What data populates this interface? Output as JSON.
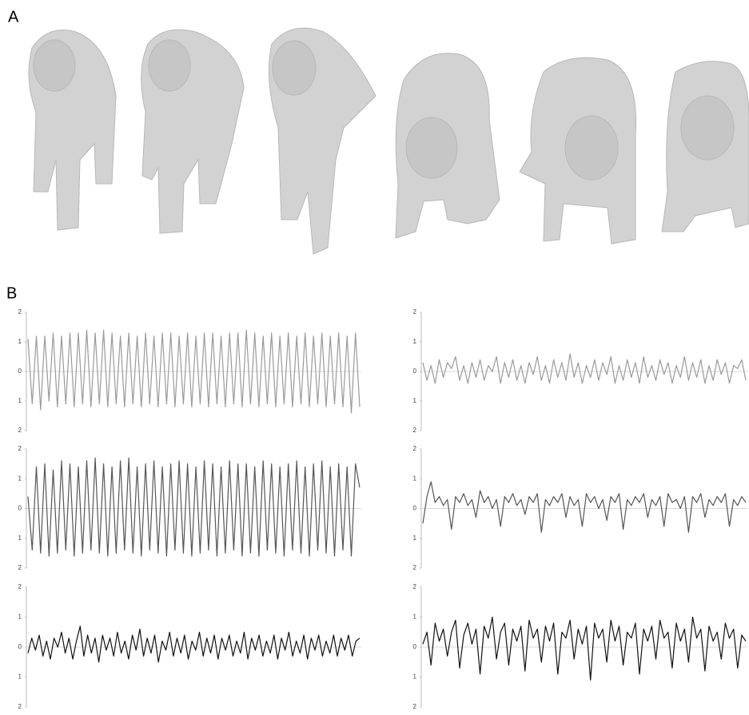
{
  "panels": {
    "a_label": "A",
    "b_label": "B"
  },
  "chart_data": [
    {
      "type": "line",
      "color": "#9a9a9a",
      "ylim": [
        -2,
        2
      ],
      "yticks": [
        {
          "value": -2,
          "label": "2"
        },
        {
          "value": -1,
          "label": "1"
        },
        0,
        1,
        2
      ],
      "zero_line": true,
      "values": [
        1.1,
        -1.1,
        1.2,
        -1.3,
        1.2,
        -1.0,
        1.3,
        -1.2,
        1.2,
        -1.1,
        1.3,
        -1.2,
        1.3,
        -1.1,
        1.4,
        -1.2,
        1.3,
        -1.1,
        1.4,
        -1.2,
        1.3,
        -1.1,
        1.2,
        -1.2,
        1.3,
        -1.1,
        1.2,
        -1.2,
        1.3,
        -1.1,
        1.2,
        -1.2,
        1.3,
        -1.1,
        1.3,
        -1.2,
        1.2,
        -1.1,
        1.3,
        -1.2,
        1.2,
        -1.1,
        1.3,
        -1.2,
        1.3,
        -1.1,
        1.2,
        -1.2,
        1.3,
        -1.1,
        1.3,
        -1.2,
        1.4,
        -1.1,
        1.3,
        -1.2,
        1.2,
        -1.1,
        1.3,
        -1.2,
        1.2,
        -1.1,
        1.3,
        -1.2,
        1.2,
        -1.1,
        1.3,
        -1.2,
        1.2,
        -1.1,
        1.3,
        -1.2,
        1.2,
        -1.1,
        1.3,
        -1.2,
        1.2,
        -1.4,
        1.3,
        -1.2
      ]
    },
    {
      "type": "line",
      "color": "#9a9a9a",
      "ylim": [
        -2,
        2
      ],
      "yticks": [
        {
          "value": -2,
          "label": "2"
        },
        {
          "value": -1,
          "label": "1"
        },
        0,
        1,
        2
      ],
      "zero_line": true,
      "values": [
        0.3,
        -0.3,
        0.2,
        -0.4,
        0.4,
        -0.2,
        0.3,
        0.1,
        0.5,
        -0.3,
        0.2,
        -0.4,
        0.3,
        -0.2,
        0.4,
        -0.3,
        0.2,
        0.0,
        0.5,
        -0.4,
        0.3,
        -0.2,
        0.4,
        -0.3,
        0.2,
        -0.4,
        0.3,
        -0.1,
        0.5,
        -0.3,
        0.2,
        -0.4,
        0.4,
        -0.2,
        0.3,
        -0.3,
        0.6,
        -0.2,
        0.3,
        -0.4,
        0.2,
        -0.2,
        0.4,
        -0.3,
        0.3,
        -0.1,
        0.5,
        -0.4,
        0.2,
        -0.3,
        0.4,
        -0.2,
        0.3,
        -0.4,
        0.5,
        -0.2,
        0.2,
        -0.3,
        0.4,
        -0.1,
        0.3,
        -0.4,
        0.2,
        -0.2,
        0.5,
        -0.3,
        0.3,
        -0.2,
        0.4,
        -0.4,
        0.2,
        -0.3,
        0.4,
        -0.1,
        0.3,
        -0.4,
        0.2,
        0.1,
        0.4,
        -0.3
      ]
    },
    {
      "type": "line",
      "color": "#555555",
      "ylim": [
        -2,
        2
      ],
      "yticks": [
        {
          "value": -2,
          "label": "2"
        },
        {
          "value": -1,
          "label": "1"
        },
        0,
        1,
        2
      ],
      "zero_line": true,
      "values": [
        0.4,
        -1.4,
        1.4,
        -1.5,
        1.5,
        -1.6,
        1.3,
        -1.5,
        1.6,
        -1.4,
        1.5,
        -1.6,
        1.4,
        -1.5,
        1.6,
        -1.4,
        1.7,
        -1.5,
        1.5,
        -1.6,
        1.4,
        -1.5,
        1.6,
        -1.4,
        1.7,
        -1.5,
        1.4,
        -1.6,
        1.5,
        -1.4,
        1.6,
        -1.5,
        1.4,
        -1.6,
        1.5,
        -1.4,
        1.6,
        -1.5,
        1.5,
        -1.6,
        1.4,
        -1.5,
        1.6,
        -1.4,
        1.5,
        -1.6,
        1.4,
        -1.5,
        1.6,
        -1.4,
        1.5,
        -1.6,
        1.5,
        -1.5,
        1.4,
        -1.6,
        1.6,
        -1.4,
        1.5,
        -1.5,
        1.4,
        -1.6,
        1.5,
        -1.4,
        1.6,
        -1.5,
        1.4,
        -1.6,
        1.5,
        -1.4,
        1.6,
        -1.5,
        1.4,
        -1.6,
        1.5,
        -1.4,
        1.4,
        -1.6,
        1.5,
        0.7
      ]
    },
    {
      "type": "line",
      "color": "#555555",
      "ylim": [
        -2,
        2
      ],
      "yticks": [
        {
          "value": -2,
          "label": "2"
        },
        {
          "value": -1,
          "label": "1"
        },
        0,
        1,
        2
      ],
      "zero_line": true,
      "values": [
        -0.5,
        0.4,
        0.9,
        0.2,
        0.4,
        0.1,
        0.3,
        -0.7,
        0.4,
        0.2,
        0.5,
        0.1,
        0.3,
        -0.3,
        0.6,
        0.2,
        0.4,
        0.0,
        0.3,
        -0.6,
        0.4,
        0.2,
        0.5,
        0.1,
        0.3,
        -0.2,
        0.4,
        0.2,
        0.5,
        -0.8,
        0.3,
        0.1,
        0.4,
        0.2,
        0.5,
        -0.3,
        0.4,
        0.1,
        0.3,
        -0.6,
        0.5,
        0.2,
        0.4,
        0.0,
        0.3,
        -0.4,
        0.4,
        0.2,
        0.5,
        -0.7,
        0.3,
        0.1,
        0.4,
        0.2,
        0.5,
        -0.3,
        0.3,
        0.1,
        0.4,
        -0.6,
        0.5,
        0.2,
        0.3,
        0.0,
        0.4,
        -0.8,
        0.4,
        0.2,
        0.5,
        -0.3,
        0.3,
        0.1,
        0.4,
        0.2,
        0.5,
        -0.6,
        0.3,
        0.1,
        0.4,
        0.2
      ]
    },
    {
      "type": "line",
      "color": "#111111",
      "ylim": [
        -2,
        2
      ],
      "yticks": [
        {
          "value": -2,
          "label": "2"
        },
        {
          "value": -1,
          "label": "1"
        },
        0,
        1,
        2
      ],
      "zero_line": true,
      "values": [
        -0.2,
        0.3,
        -0.1,
        0.4,
        -0.3,
        0.2,
        -0.4,
        0.3,
        0.0,
        0.5,
        -0.2,
        0.3,
        -0.4,
        0.2,
        0.7,
        -0.3,
        0.4,
        -0.2,
        0.3,
        -0.5,
        0.4,
        -0.1,
        0.3,
        -0.3,
        0.5,
        -0.2,
        0.2,
        -0.4,
        0.4,
        -0.1,
        0.6,
        -0.3,
        0.3,
        -0.2,
        0.4,
        -0.5,
        0.2,
        -0.1,
        0.5,
        -0.3,
        0.3,
        -0.2,
        0.4,
        -0.4,
        0.2,
        -0.1,
        0.5,
        -0.3,
        0.3,
        -0.2,
        0.4,
        -0.4,
        0.3,
        -0.1,
        0.4,
        -0.3,
        0.2,
        -0.2,
        0.5,
        -0.4,
        0.3,
        -0.1,
        0.4,
        -0.3,
        0.2,
        -0.2,
        0.4,
        -0.4,
        0.3,
        -0.1,
        0.5,
        -0.3,
        0.2,
        -0.2,
        0.4,
        -0.4,
        0.3,
        -0.1,
        0.4,
        -0.3,
        0.2,
        -0.2,
        0.4,
        -0.3,
        0.3,
        -0.1,
        0.4,
        -0.3,
        0.2,
        0.3
      ]
    },
    {
      "type": "line",
      "color": "#111111",
      "ylim": [
        -2,
        2
      ],
      "yticks": [
        {
          "value": -2,
          "label": "2"
        },
        {
          "value": -1,
          "label": "1"
        },
        0,
        1,
        2
      ],
      "zero_line": true,
      "values": [
        0.1,
        0.5,
        -0.6,
        0.8,
        0.2,
        0.6,
        -0.3,
        0.5,
        0.9,
        -0.7,
        0.4,
        0.8,
        0.1,
        0.6,
        -0.9,
        0.7,
        0.3,
        1.0,
        -0.4,
        0.5,
        0.8,
        -0.6,
        0.6,
        0.2,
        0.7,
        -0.8,
        0.9,
        0.3,
        0.6,
        -0.5,
        0.7,
        0.2,
        0.8,
        -0.9,
        0.5,
        0.3,
        0.9,
        -0.4,
        0.6,
        0.1,
        0.7,
        -1.1,
        0.8,
        0.3,
        0.6,
        -0.5,
        0.9,
        0.2,
        0.7,
        -0.6,
        0.5,
        0.3,
        0.8,
        -0.9,
        0.6,
        0.2,
        0.7,
        -0.4,
        0.9,
        0.3,
        0.5,
        -0.7,
        0.8,
        0.2,
        0.6,
        -0.5,
        1.0,
        0.3,
        0.6,
        -0.8,
        0.7,
        0.2,
        0.5,
        -0.4,
        0.8,
        0.3,
        0.6,
        -0.7,
        0.4,
        0.2
      ]
    }
  ]
}
